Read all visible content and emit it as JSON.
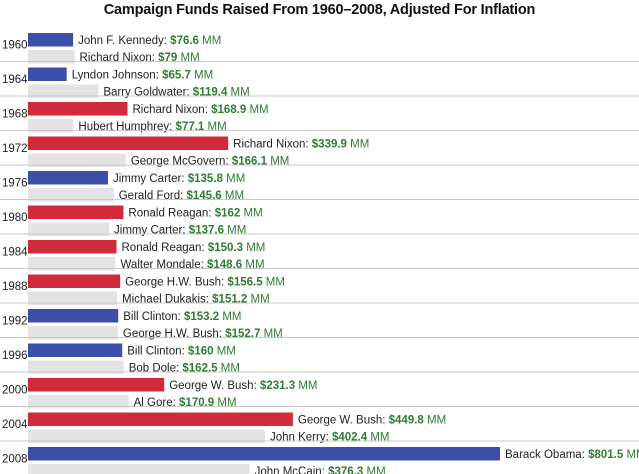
{
  "chart_data": {
    "type": "bar",
    "orientation": "horizontal",
    "title": "Campaign Funds Raised From 1960–2008, Adjusted For Inflation",
    "unit": "MM",
    "xlim": [
      0,
      801.5
    ],
    "grid": false,
    "legend": "none",
    "colors": {
      "democrat": "#3b4fa8",
      "republican": "#d12a3a",
      "loser": "#e3e3e3",
      "amount": "#2e7d32",
      "separator": "#c8c8c8"
    },
    "elections": [
      {
        "year": "1960",
        "winner": {
          "name": "John F. Kennedy",
          "party": "democrat",
          "value": 76.6,
          "amount": "$76.6",
          "unit": "MM"
        },
        "loser": {
          "name": "Richard Nixon",
          "value": 79,
          "amount": "$79",
          "unit": "MM"
        }
      },
      {
        "year": "1964",
        "winner": {
          "name": "Lyndon Johnson",
          "party": "democrat",
          "value": 65.7,
          "amount": "$65.7",
          "unit": "MM"
        },
        "loser": {
          "name": "Barry Goldwater",
          "value": 119.4,
          "amount": "$119.4",
          "unit": "MM"
        }
      },
      {
        "year": "1968",
        "winner": {
          "name": "Richard Nixon",
          "party": "republican",
          "value": 168.9,
          "amount": "$168.9",
          "unit": "MM"
        },
        "loser": {
          "name": "Hubert Humphrey",
          "value": 77.1,
          "amount": "$77.1",
          "unit": "MM"
        }
      },
      {
        "year": "1972",
        "winner": {
          "name": "Richard Nixon",
          "party": "republican",
          "value": 339.9,
          "amount": "$339.9",
          "unit": "MM"
        },
        "loser": {
          "name": "George McGovern",
          "value": 166.1,
          "amount": "$166.1",
          "unit": "MM"
        }
      },
      {
        "year": "1976",
        "winner": {
          "name": "Jimmy Carter",
          "party": "democrat",
          "value": 135.8,
          "amount": "$135.8",
          "unit": "MM"
        },
        "loser": {
          "name": "Gerald Ford",
          "value": 145.6,
          "amount": "$145.6",
          "unit": "MM"
        }
      },
      {
        "year": "1980",
        "winner": {
          "name": "Ronald Reagan",
          "party": "republican",
          "value": 162,
          "amount": "$162",
          "unit": "MM"
        },
        "loser": {
          "name": "Jimmy Carter",
          "value": 137.6,
          "amount": "$137.6",
          "unit": "MM"
        }
      },
      {
        "year": "1984",
        "winner": {
          "name": "Ronald Reagan",
          "party": "republican",
          "value": 150.3,
          "amount": "$150.3",
          "unit": "MM"
        },
        "loser": {
          "name": "Walter Mondale",
          "value": 148.6,
          "amount": "$148.6",
          "unit": "MM"
        }
      },
      {
        "year": "1988",
        "winner": {
          "name": "George H.W. Bush",
          "party": "republican",
          "value": 156.5,
          "amount": "$156.5",
          "unit": "MM"
        },
        "loser": {
          "name": "Michael Dukakis",
          "value": 151.2,
          "amount": "$151.2",
          "unit": "MM"
        }
      },
      {
        "year": "1992",
        "winner": {
          "name": "Bill Clinton",
          "party": "democrat",
          "value": 153.2,
          "amount": "$153.2",
          "unit": "MM"
        },
        "loser": {
          "name": "George H.W. Bush",
          "value": 152.7,
          "amount": "$152.7",
          "unit": "MM"
        }
      },
      {
        "year": "1996",
        "winner": {
          "name": "Bill Clinton",
          "party": "democrat",
          "value": 160,
          "amount": "$160",
          "unit": "MM"
        },
        "loser": {
          "name": "Bob Dole",
          "value": 162.5,
          "amount": "$162.5",
          "unit": "MM"
        }
      },
      {
        "year": "2000",
        "winner": {
          "name": "George W. Bush",
          "party": "republican",
          "value": 231.3,
          "amount": "$231.3",
          "unit": "MM"
        },
        "loser": {
          "name": "Al Gore",
          "value": 170.9,
          "amount": "$170.9",
          "unit": "MM"
        }
      },
      {
        "year": "2004",
        "winner": {
          "name": "George W. Bush",
          "party": "republican",
          "value": 449.8,
          "amount": "$449.8",
          "unit": "MM"
        },
        "loser": {
          "name": "John Kerry",
          "value": 402.4,
          "amount": "$402.4",
          "unit": "MM"
        }
      },
      {
        "year": "2008",
        "winner": {
          "name": "Barack Obama",
          "party": "democrat",
          "value": 801.5,
          "amount": "$801.5",
          "unit": "MM"
        },
        "loser": {
          "name": "John McCain",
          "value": 376.3,
          "amount": "$376.3",
          "unit": "MM"
        }
      }
    ]
  }
}
